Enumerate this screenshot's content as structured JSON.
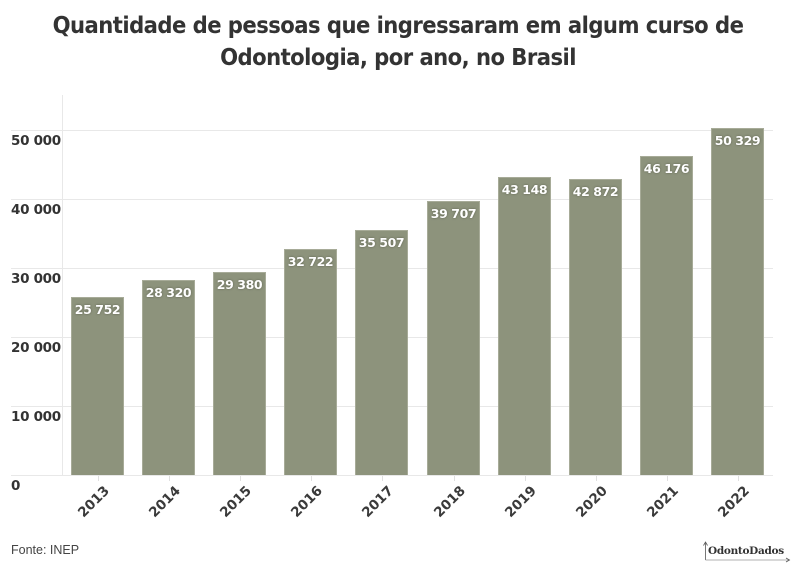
{
  "header": {
    "title_line1": "Quantidade de pessoas que ingressaram em algum curso de",
    "title_line2": "Odontologia, por ano, no Brasil"
  },
  "footer": {
    "source": "Fonte: INEP",
    "brand": "OdontoDados"
  },
  "colors": {
    "bar": "#8d937c",
    "bar_border": "#a7ab98",
    "gridline": "#e8e8e8",
    "text": "#333333"
  },
  "chart_data": {
    "type": "bar",
    "title": "Quantidade de pessoas que ingressaram em algum curso de Odontologia, por ano, no Brasil",
    "xlabel": "",
    "ylabel": "",
    "categories": [
      "2013",
      "2014",
      "2015",
      "2016",
      "2017",
      "2018",
      "2019",
      "2020",
      "2021",
      "2022"
    ],
    "values": [
      25752,
      28320,
      29380,
      32722,
      35507,
      39707,
      43148,
      42872,
      46176,
      50329
    ],
    "value_labels": [
      "25 752",
      "28 320",
      "29 380",
      "32 722",
      "35 507",
      "39 707",
      "43 148",
      "42 872",
      "46 176",
      "50 329"
    ],
    "yticks": [
      0,
      10000,
      20000,
      30000,
      40000,
      50000
    ],
    "ytick_labels": [
      "0",
      "10 000",
      "20 000",
      "30 000",
      "40 000",
      "50 000"
    ],
    "ylim": [
      0,
      50000
    ],
    "grid": true,
    "legend": null,
    "source": "Fonte: INEP"
  }
}
